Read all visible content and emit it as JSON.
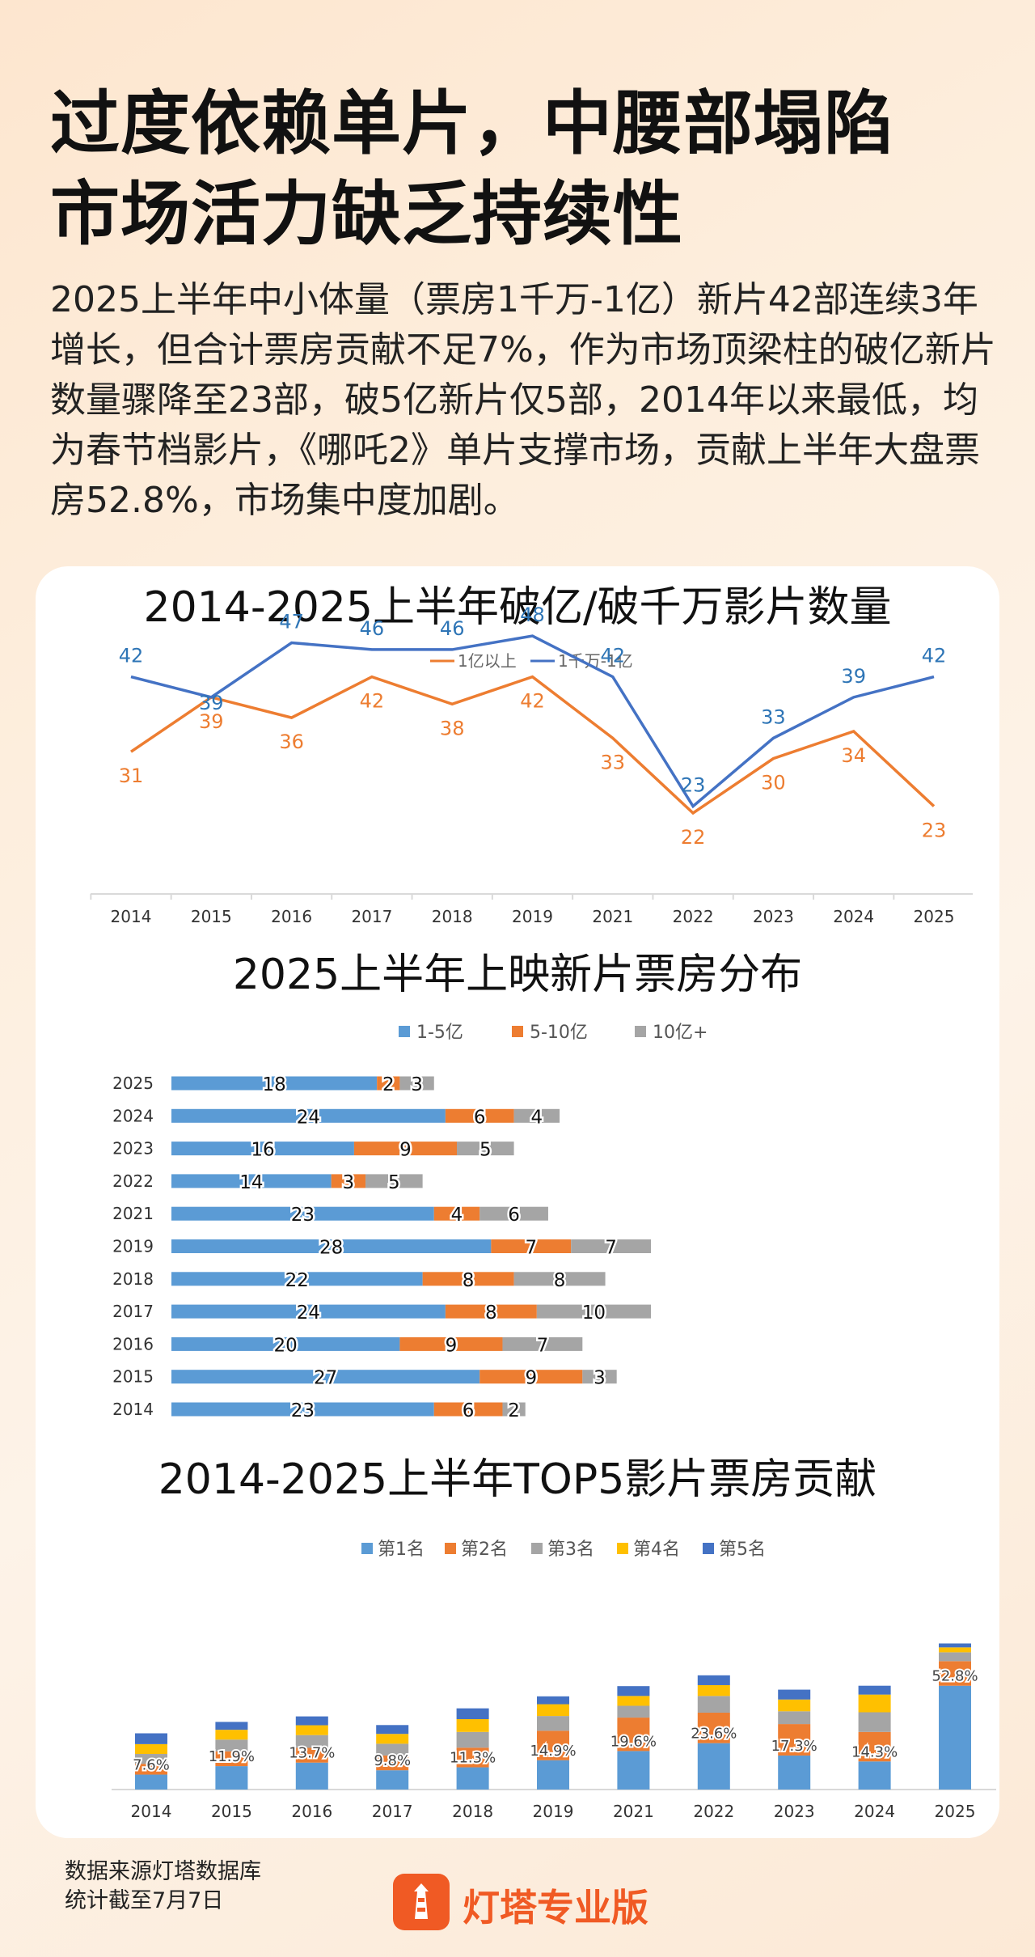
{
  "header": {
    "title_line1": "过度依赖单片，中腰部塌陷",
    "title_line2": "市场活力缺乏持续性",
    "intro": "2025上半年中小体量（票房1千万-1亿）新片42部连续3年增长，但合计票房贡献不足7%，作为市场顶梁柱的破亿新片数量骤降至23部，破5亿新片仅5部，2014年以来最低，均为春节档影片，《哪吒2》单片支撑市场，贡献上半年大盘票房52.8%，市场集中度加剧。"
  },
  "colors": {
    "blue": "#4472c4",
    "orange": "#ed7d31",
    "gray": "#a5a5a5",
    "yellow": "#ffc000",
    "dark_blue": "#4472c4",
    "light_blue": "#5b9bd5",
    "brand": "#f05a24"
  },
  "chart_data": [
    {
      "type": "line",
      "title": "2014-2025上半年破亿/破千万影片数量",
      "categories": [
        "2014",
        "2015",
        "2016",
        "2017",
        "2018",
        "2019",
        "2021",
        "2022",
        "2023",
        "2024",
        "2025"
      ],
      "legend_position": "top",
      "series": [
        {
          "name": "1亿以上",
          "values": [
            31,
            39,
            36,
            42,
            38,
            42,
            33,
            22,
            30,
            34,
            23
          ],
          "color": "#ed7d31"
        },
        {
          "name": "1千万-1亿",
          "values": [
            42,
            39,
            47,
            46,
            46,
            48,
            42,
            23,
            33,
            39,
            42
          ],
          "color": "#4472c4"
        }
      ]
    },
    {
      "type": "bar",
      "orientation": "horizontal",
      "stacked": true,
      "title": "2025上半年上映新片票房分布",
      "legend_position": "top",
      "categories": [
        "2025",
        "2024",
        "2023",
        "2022",
        "2021",
        "2019",
        "2018",
        "2017",
        "2016",
        "2015",
        "2014"
      ],
      "series": [
        {
          "name": "1-5亿",
          "values": [
            18,
            24,
            16,
            14,
            23,
            28,
            22,
            24,
            20,
            27,
            23
          ],
          "color": "#5b9bd5"
        },
        {
          "name": "5-10亿",
          "values": [
            2,
            6,
            9,
            3,
            4,
            7,
            8,
            8,
            9,
            9,
            6
          ],
          "color": "#ed7d31"
        },
        {
          "name": "10亿+",
          "values": [
            3,
            4,
            5,
            5,
            6,
            7,
            8,
            10,
            7,
            3,
            2
          ],
          "color": "#a5a5a5"
        }
      ]
    },
    {
      "type": "bar",
      "stacked": true,
      "title": "2014-2025上半年TOP5影片票房贡献",
      "legend_position": "top",
      "categories": [
        "2014",
        "2015",
        "2016",
        "2017",
        "2018",
        "2019",
        "2021",
        "2022",
        "2023",
        "2024",
        "2025"
      ],
      "first_rank_labels": [
        "7.6%",
        "11.9%",
        "13.7%",
        "9.8%",
        "11.3%",
        "14.9%",
        "19.6%",
        "23.6%",
        "17.3%",
        "14.3%",
        "52.8%"
      ],
      "series": [
        {
          "name": "第1名",
          "values": [
            7.6,
            11.9,
            13.7,
            9.8,
            11.3,
            14.9,
            19.6,
            23.6,
            17.3,
            14.3,
            52.8
          ],
          "color": "#5b9bd5"
        },
        {
          "name": "第2名",
          "values": [
            5.5,
            7.5,
            7.5,
            7.5,
            10.0,
            15.0,
            17.0,
            15.5,
            16.0,
            15.0,
            12.5
          ],
          "color": "#ed7d31"
        },
        {
          "name": "第3名",
          "values": [
            5.0,
            6.0,
            6.5,
            6.0,
            8.0,
            7.5,
            6.0,
            8.5,
            6.5,
            10.0,
            4.5
          ],
          "color": "#a5a5a5"
        },
        {
          "name": "第4名",
          "values": [
            5.0,
            5.0,
            5.0,
            5.0,
            6.5,
            6.0,
            5.0,
            5.5,
            6.0,
            9.0,
            2.5
          ],
          "color": "#ffc000"
        },
        {
          "name": "第5名",
          "values": [
            5.5,
            4.0,
            4.5,
            4.5,
            5.5,
            4.0,
            5.0,
            5.0,
            5.0,
            4.5,
            2.0
          ],
          "color": "#4472c4"
        }
      ]
    }
  ],
  "footer": {
    "source_line1": "数据来源灯塔数据库",
    "source_line2": "统计截至7月7日",
    "brand": "灯塔专业版"
  }
}
